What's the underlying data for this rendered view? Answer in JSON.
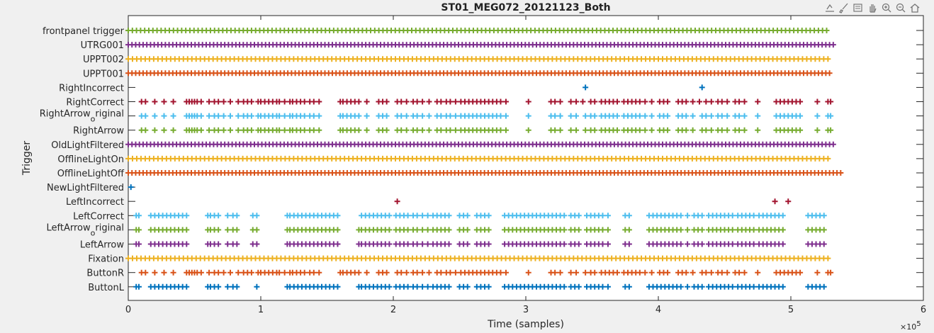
{
  "toolbar": {
    "icons": [
      "export-icon",
      "brush-icon",
      "datatip-icon",
      "pan-icon",
      "zoom-in-icon",
      "zoom-out-icon",
      "home-icon"
    ]
  },
  "colors": {
    "blue": "#0072BD",
    "orange": "#D95319",
    "yellow": "#EDB120",
    "purple": "#7E2F8E",
    "green": "#77AC30",
    "cyan": "#4DBEEE",
    "red": "#A2142F"
  },
  "chart_data": {
    "type": "scatter",
    "title": "ST01_MEG072_20121123_Both",
    "xlabel": "Time (samples)",
    "ylabel": "Trigger",
    "x_exponent_label": "×10",
    "x_exponent": "5",
    "xlim": [
      0,
      6
    ],
    "x_units_multiplier": 100000,
    "xticks": [
      0,
      1,
      2,
      3,
      4,
      5,
      6
    ],
    "xtick_labels": [
      "0",
      "1",
      "2",
      "3",
      "4",
      "5",
      "6"
    ],
    "marker": "+",
    "grid": false,
    "series": [
      {
        "name": "frontpanel trigger",
        "color": "green",
        "x_start": 0.0,
        "x_end": 5.3,
        "step": 0.031
      },
      {
        "name": "UTRG001",
        "color": "purple",
        "x_start": 0.0,
        "x_end": 5.32,
        "step": 0.028
      },
      {
        "name": "UPPT002",
        "color": "yellow",
        "x_start": 0.0,
        "x_end": 5.31,
        "step": 0.032
      },
      {
        "name": "UPPT001",
        "color": "orange",
        "x_start": 0.0,
        "x_end": 5.31,
        "step": 0.028
      },
      {
        "name": "RightIncorrect",
        "color": "blue",
        "x": [
          3.45,
          4.33
        ]
      },
      {
        "name": "RightCorrect",
        "color": "red",
        "x": [
          0.1,
          0.13,
          0.2,
          0.27,
          0.34,
          0.44,
          0.46,
          0.48,
          0.5,
          0.52,
          0.55,
          0.61,
          0.65,
          0.68,
          0.72,
          0.77,
          0.83,
          0.87,
          0.9,
          0.93,
          0.98,
          1.0,
          1.03,
          1.06,
          1.09,
          1.12,
          1.14,
          1.18,
          1.22,
          1.24,
          1.27,
          1.3,
          1.33,
          1.37,
          1.4,
          1.44,
          1.6,
          1.62,
          1.65,
          1.68,
          1.71,
          1.74,
          1.8,
          1.89,
          1.92,
          1.95,
          2.03,
          2.06,
          2.1,
          2.15,
          2.18,
          2.22,
          2.27,
          2.33,
          2.36,
          2.4,
          2.43,
          2.47,
          2.51,
          2.54,
          2.57,
          2.6,
          2.63,
          2.66,
          2.69,
          2.72,
          2.75,
          2.78,
          2.81,
          2.85,
          3.02,
          3.19,
          3.22,
          3.26,
          3.34,
          3.38,
          3.43,
          3.49,
          3.52,
          3.57,
          3.6,
          3.63,
          3.66,
          3.69,
          3.74,
          3.77,
          3.8,
          3.83,
          3.86,
          3.9,
          3.95,
          4.01,
          4.04,
          4.07,
          4.15,
          4.18,
          4.21,
          4.26,
          4.31,
          4.36,
          4.4,
          4.45,
          4.48,
          4.52,
          4.58,
          4.61,
          4.65,
          4.75,
          4.89,
          4.92,
          4.95,
          4.98,
          5.01,
          5.04,
          5.07,
          5.2,
          5.28,
          5.3
        ]
      },
      {
        "name": "RightArrow_original",
        "display": [
          "RightArrow",
          "o",
          "riginal"
        ],
        "color": "cyan",
        "x": [
          0.1,
          0.13,
          0.2,
          0.27,
          0.34,
          0.44,
          0.46,
          0.48,
          0.5,
          0.52,
          0.55,
          0.61,
          0.65,
          0.68,
          0.72,
          0.77,
          0.83,
          0.87,
          0.9,
          0.93,
          0.98,
          1.0,
          1.03,
          1.06,
          1.09,
          1.12,
          1.14,
          1.18,
          1.22,
          1.24,
          1.27,
          1.3,
          1.33,
          1.37,
          1.4,
          1.44,
          1.6,
          1.62,
          1.65,
          1.68,
          1.71,
          1.74,
          1.8,
          1.89,
          1.92,
          1.95,
          2.03,
          2.06,
          2.1,
          2.15,
          2.18,
          2.22,
          2.27,
          2.33,
          2.36,
          2.4,
          2.43,
          2.47,
          2.51,
          2.54,
          2.57,
          2.6,
          2.63,
          2.66,
          2.69,
          2.72,
          2.75,
          2.78,
          2.81,
          2.85,
          3.02,
          3.19,
          3.22,
          3.26,
          3.34,
          3.38,
          3.45,
          3.49,
          3.52,
          3.57,
          3.6,
          3.63,
          3.66,
          3.69,
          3.74,
          3.77,
          3.8,
          3.83,
          3.86,
          3.9,
          3.95,
          4.01,
          4.04,
          4.07,
          4.15,
          4.18,
          4.21,
          4.26,
          4.33,
          4.36,
          4.4,
          4.45,
          4.48,
          4.52,
          4.58,
          4.61,
          4.65,
          4.75,
          4.89,
          4.92,
          4.95,
          4.98,
          5.01,
          5.04,
          5.07,
          5.2,
          5.28,
          5.3
        ]
      },
      {
        "name": "RightArrow",
        "color": "green",
        "x": [
          0.1,
          0.13,
          0.2,
          0.27,
          0.34,
          0.44,
          0.46,
          0.48,
          0.5,
          0.52,
          0.55,
          0.61,
          0.65,
          0.68,
          0.72,
          0.77,
          0.83,
          0.87,
          0.9,
          0.93,
          0.98,
          1.0,
          1.03,
          1.06,
          1.09,
          1.12,
          1.14,
          1.18,
          1.22,
          1.24,
          1.27,
          1.3,
          1.33,
          1.37,
          1.4,
          1.44,
          1.6,
          1.62,
          1.65,
          1.68,
          1.71,
          1.74,
          1.8,
          1.89,
          1.92,
          1.95,
          2.03,
          2.06,
          2.1,
          2.15,
          2.18,
          2.22,
          2.27,
          2.33,
          2.36,
          2.4,
          2.43,
          2.47,
          2.51,
          2.54,
          2.57,
          2.6,
          2.63,
          2.66,
          2.69,
          2.72,
          2.75,
          2.78,
          2.81,
          2.85,
          3.02,
          3.19,
          3.22,
          3.26,
          3.34,
          3.38,
          3.45,
          3.49,
          3.52,
          3.57,
          3.6,
          3.63,
          3.66,
          3.69,
          3.74,
          3.77,
          3.8,
          3.83,
          3.86,
          3.9,
          3.95,
          4.01,
          4.04,
          4.07,
          4.15,
          4.18,
          4.21,
          4.26,
          4.33,
          4.36,
          4.4,
          4.45,
          4.48,
          4.52,
          4.58,
          4.61,
          4.65,
          4.75,
          4.89,
          4.92,
          4.95,
          4.98,
          5.01,
          5.04,
          5.07,
          5.2,
          5.28,
          5.3
        ]
      },
      {
        "name": "OldLightFiltered",
        "color": "purple",
        "x_start": 0.0,
        "x_end": 5.32,
        "step": 0.028
      },
      {
        "name": "OfflineLightOn",
        "color": "yellow",
        "x_start": 0.0,
        "x_end": 5.31,
        "step": 0.032
      },
      {
        "name": "OfflineLightOff",
        "color": "orange",
        "x_start": 0.0,
        "x_end": 5.38,
        "step": 0.028
      },
      {
        "name": "NewLightFiltered",
        "color": "blue",
        "x": [
          0.02
        ]
      },
      {
        "name": "LeftIncorrect",
        "color": "red",
        "x": [
          2.03,
          4.88,
          4.98
        ]
      },
      {
        "name": "LeftCorrect",
        "color": "cyan",
        "x": [
          0.06,
          0.08,
          0.17,
          0.2,
          0.23,
          0.26,
          0.29,
          0.32,
          0.35,
          0.38,
          0.41,
          0.44,
          0.6,
          0.62,
          0.65,
          0.68,
          0.75,
          0.79,
          0.82,
          0.94,
          0.97,
          1.2,
          1.22,
          1.25,
          1.28,
          1.31,
          1.34,
          1.37,
          1.4,
          1.43,
          1.46,
          1.49,
          1.52,
          1.55,
          1.58,
          1.76,
          1.79,
          1.82,
          1.85,
          1.88,
          1.91,
          1.94,
          1.97,
          2.02,
          2.05,
          2.08,
          2.11,
          2.15,
          2.18,
          2.22,
          2.26,
          2.3,
          2.33,
          2.36,
          2.39,
          2.42,
          2.5,
          2.53,
          2.56,
          2.63,
          2.66,
          2.69,
          2.72,
          2.84,
          2.87,
          2.9,
          2.93,
          2.96,
          2.99,
          3.02,
          3.05,
          3.08,
          3.11,
          3.14,
          3.17,
          3.2,
          3.23,
          3.26,
          3.29,
          3.34,
          3.37,
          3.4,
          3.46,
          3.49,
          3.52,
          3.55,
          3.58,
          3.62,
          3.75,
          3.78,
          3.93,
          3.96,
          3.99,
          4.02,
          4.05,
          4.08,
          4.11,
          4.14,
          4.17,
          4.22,
          4.27,
          4.3,
          4.33,
          4.38,
          4.41,
          4.44,
          4.47,
          4.5,
          4.53,
          4.56,
          4.6,
          4.63,
          4.66,
          4.69,
          4.72,
          4.76,
          4.79,
          4.82,
          4.85,
          4.88,
          4.91,
          4.94,
          5.13,
          5.16,
          5.19,
          5.22,
          5.25
        ]
      },
      {
        "name": "LeftArrow_original",
        "display": [
          "LeftArrow",
          "o",
          "riginal"
        ],
        "color": "green",
        "x": [
          0.06,
          0.08,
          0.17,
          0.2,
          0.23,
          0.26,
          0.29,
          0.32,
          0.35,
          0.38,
          0.41,
          0.44,
          0.6,
          0.62,
          0.65,
          0.68,
          0.75,
          0.79,
          0.82,
          0.94,
          0.97,
          1.2,
          1.22,
          1.25,
          1.28,
          1.31,
          1.34,
          1.37,
          1.4,
          1.43,
          1.46,
          1.49,
          1.52,
          1.55,
          1.58,
          1.74,
          1.76,
          1.79,
          1.82,
          1.85,
          1.88,
          1.91,
          1.94,
          1.97,
          2.02,
          2.05,
          2.08,
          2.11,
          2.15,
          2.18,
          2.22,
          2.26,
          2.3,
          2.33,
          2.36,
          2.39,
          2.42,
          2.5,
          2.53,
          2.56,
          2.63,
          2.66,
          2.69,
          2.72,
          2.84,
          2.87,
          2.9,
          2.93,
          2.96,
          2.99,
          3.02,
          3.05,
          3.08,
          3.11,
          3.14,
          3.17,
          3.2,
          3.23,
          3.26,
          3.29,
          3.34,
          3.37,
          3.4,
          3.46,
          3.49,
          3.52,
          3.55,
          3.58,
          3.62,
          3.75,
          3.78,
          3.93,
          3.96,
          3.99,
          4.02,
          4.05,
          4.08,
          4.11,
          4.14,
          4.17,
          4.22,
          4.27,
          4.3,
          4.33,
          4.38,
          4.41,
          4.44,
          4.47,
          4.5,
          4.53,
          4.56,
          4.6,
          4.63,
          4.66,
          4.69,
          4.72,
          4.76,
          4.79,
          4.82,
          4.85,
          4.88,
          4.91,
          4.94,
          5.13,
          5.16,
          5.19,
          5.22,
          5.25
        ]
      },
      {
        "name": "LeftArrow",
        "color": "purple",
        "x": [
          0.06,
          0.08,
          0.17,
          0.2,
          0.23,
          0.26,
          0.29,
          0.32,
          0.35,
          0.38,
          0.41,
          0.44,
          0.6,
          0.62,
          0.65,
          0.68,
          0.75,
          0.79,
          0.82,
          0.94,
          0.97,
          1.2,
          1.22,
          1.25,
          1.28,
          1.31,
          1.34,
          1.37,
          1.4,
          1.43,
          1.46,
          1.49,
          1.52,
          1.55,
          1.58,
          1.74,
          1.76,
          1.79,
          1.82,
          1.85,
          1.88,
          1.91,
          1.94,
          1.97,
          2.02,
          2.05,
          2.08,
          2.11,
          2.15,
          2.18,
          2.22,
          2.26,
          2.3,
          2.33,
          2.36,
          2.39,
          2.42,
          2.5,
          2.53,
          2.56,
          2.63,
          2.66,
          2.69,
          2.72,
          2.84,
          2.87,
          2.9,
          2.93,
          2.96,
          2.99,
          3.02,
          3.05,
          3.08,
          3.11,
          3.14,
          3.17,
          3.2,
          3.23,
          3.26,
          3.29,
          3.34,
          3.37,
          3.4,
          3.46,
          3.49,
          3.52,
          3.55,
          3.58,
          3.62,
          3.75,
          3.78,
          3.93,
          3.96,
          3.99,
          4.02,
          4.05,
          4.08,
          4.11,
          4.14,
          4.17,
          4.22,
          4.27,
          4.3,
          4.33,
          4.38,
          4.41,
          4.44,
          4.47,
          4.5,
          4.53,
          4.56,
          4.6,
          4.63,
          4.66,
          4.69,
          4.72,
          4.76,
          4.79,
          4.82,
          4.85,
          4.88,
          4.91,
          4.94,
          5.13,
          5.16,
          5.19,
          5.22,
          5.25
        ]
      },
      {
        "name": "Fixation",
        "color": "yellow",
        "x_start": 0.0,
        "x_end": 5.31,
        "step": 0.032
      },
      {
        "name": "ButtonR",
        "color": "orange",
        "x": [
          0.1,
          0.13,
          0.2,
          0.27,
          0.34,
          0.44,
          0.46,
          0.48,
          0.5,
          0.52,
          0.55,
          0.61,
          0.65,
          0.68,
          0.72,
          0.77,
          0.83,
          0.87,
          0.9,
          0.93,
          0.98,
          1.0,
          1.03,
          1.06,
          1.09,
          1.12,
          1.14,
          1.18,
          1.22,
          1.24,
          1.27,
          1.3,
          1.33,
          1.37,
          1.4,
          1.44,
          1.6,
          1.62,
          1.65,
          1.68,
          1.71,
          1.74,
          1.8,
          1.89,
          1.92,
          1.95,
          2.03,
          2.06,
          2.1,
          2.15,
          2.18,
          2.22,
          2.27,
          2.33,
          2.36,
          2.4,
          2.43,
          2.47,
          2.51,
          2.54,
          2.57,
          2.6,
          2.63,
          2.66,
          2.69,
          2.72,
          2.75,
          2.78,
          2.81,
          2.85,
          3.02,
          3.19,
          3.22,
          3.26,
          3.34,
          3.38,
          3.45,
          3.49,
          3.52,
          3.57,
          3.6,
          3.63,
          3.66,
          3.69,
          3.74,
          3.77,
          3.8,
          3.83,
          3.86,
          3.9,
          3.95,
          4.01,
          4.04,
          4.07,
          4.15,
          4.18,
          4.21,
          4.26,
          4.33,
          4.36,
          4.4,
          4.45,
          4.48,
          4.52,
          4.58,
          4.61,
          4.65,
          4.75,
          4.89,
          4.92,
          4.95,
          4.98,
          5.01,
          5.04,
          5.07,
          5.2,
          5.28,
          5.3
        ]
      },
      {
        "name": "ButtonL",
        "color": "blue",
        "x": [
          0.06,
          0.08,
          0.17,
          0.2,
          0.23,
          0.26,
          0.29,
          0.32,
          0.35,
          0.38,
          0.41,
          0.44,
          0.6,
          0.62,
          0.65,
          0.68,
          0.75,
          0.79,
          0.82,
          0.97,
          1.2,
          1.22,
          1.25,
          1.28,
          1.31,
          1.34,
          1.37,
          1.4,
          1.43,
          1.46,
          1.49,
          1.52,
          1.55,
          1.58,
          1.74,
          1.76,
          1.79,
          1.82,
          1.85,
          1.88,
          1.91,
          1.94,
          1.97,
          2.02,
          2.05,
          2.08,
          2.11,
          2.15,
          2.18,
          2.22,
          2.26,
          2.3,
          2.33,
          2.36,
          2.39,
          2.42,
          2.5,
          2.53,
          2.56,
          2.63,
          2.66,
          2.69,
          2.72,
          2.84,
          2.87,
          2.9,
          2.93,
          2.96,
          2.99,
          3.02,
          3.05,
          3.08,
          3.11,
          3.14,
          3.17,
          3.2,
          3.23,
          3.26,
          3.29,
          3.34,
          3.37,
          3.4,
          3.46,
          3.49,
          3.52,
          3.55,
          3.58,
          3.62,
          3.75,
          3.78,
          3.93,
          3.96,
          3.99,
          4.02,
          4.05,
          4.08,
          4.11,
          4.14,
          4.17,
          4.22,
          4.27,
          4.3,
          4.33,
          4.38,
          4.41,
          4.44,
          4.47,
          4.5,
          4.53,
          4.56,
          4.6,
          4.63,
          4.66,
          4.69,
          4.72,
          4.76,
          4.79,
          4.82,
          4.85,
          4.88,
          4.91,
          4.94,
          5.13,
          5.16,
          5.19,
          5.22,
          5.25
        ]
      }
    ]
  }
}
